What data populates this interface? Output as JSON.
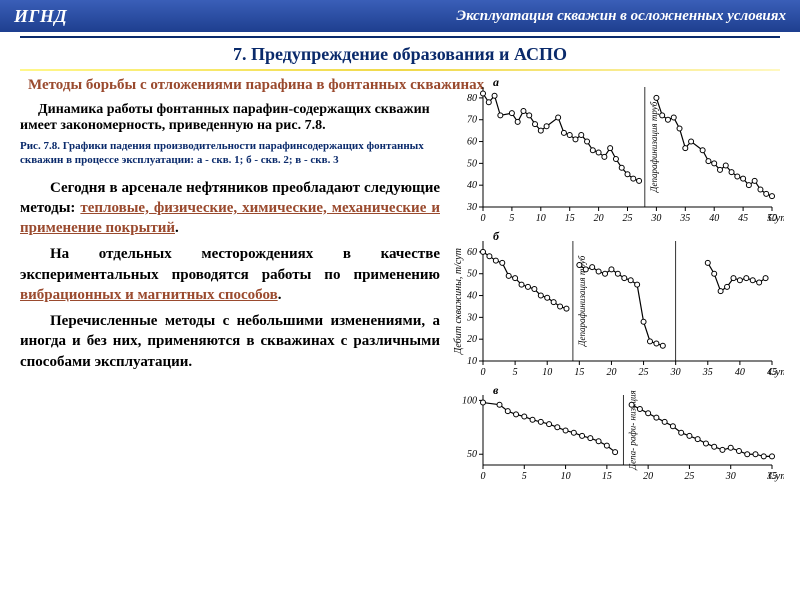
{
  "header": {
    "left": "ИГНД",
    "right": "Эксплуатация скважин в осложненных условиях"
  },
  "section_title": "7. Предупреждение образования и АСПО",
  "subtitle": "Методы борьбы с отложениями парафина в фонтанных скважинах",
  "para1": "Динамика работы фонтанных парафин-содержащих скважин имеет закономерность, приведенную на рис. 7.8.",
  "figcap": "Рис. 7.8. Графики падения производительности парафинсодержащих фонтанных скважин в процессе эксплуатации: а - скв. 1; б - скв. 2; в - скв. 3",
  "p2a": "Сегодня в арсенале нефтяников преобладают следующие методы: ",
  "p2b": "тепловые, физические, химические,  механические  и применение покрытий",
  "p2c": ".",
  "p3a": "На отдельных месторождениях в качестве экспериментальных проводятся работы по применению ",
  "p3b": "вибрационных и магнитных способов",
  "p3c": ".",
  "p4": "Перечисленные методы с небольшими изменениями, а иногда и без них, применяются в скважинах с различными способами эксплуатации.",
  "chart_common": {
    "axis_color": "#000000",
    "bg": "#ffffff",
    "marker_fill": "#ffffff",
    "marker_stroke": "#000000",
    "line_stroke": "#000000",
    "line_width": 1.2,
    "marker_radius": 2.5,
    "tick_font": 10,
    "x_label": "Сутки",
    "side_label_a": "Депарафинизация труб",
    "side_label_b": "Депарафинизация труб",
    "side_label_c": "Депа-\nрафи-\nнизация",
    "y_axis_label": "Дебит скважины, т/сут"
  },
  "chartA": {
    "panel_label": "а",
    "xlim": [
      0,
      50
    ],
    "ylim": [
      30,
      85
    ],
    "xticks": [
      0,
      5,
      10,
      15,
      20,
      25,
      30,
      35,
      40,
      45,
      50
    ],
    "yticks": [
      30,
      40,
      50,
      60,
      70,
      80
    ],
    "series1": [
      [
        0,
        82
      ],
      [
        1,
        78
      ],
      [
        2,
        81
      ],
      [
        3,
        72
      ],
      [
        5,
        73
      ],
      [
        6,
        69
      ],
      [
        7,
        74
      ],
      [
        8,
        72
      ],
      [
        9,
        68
      ],
      [
        10,
        65
      ],
      [
        11,
        67
      ],
      [
        13,
        71
      ],
      [
        14,
        64
      ],
      [
        15,
        63
      ],
      [
        16,
        61
      ],
      [
        17,
        63
      ],
      [
        18,
        60
      ],
      [
        19,
        56
      ],
      [
        20,
        55
      ],
      [
        21,
        53
      ],
      [
        22,
        57
      ],
      [
        23,
        52
      ],
      [
        24,
        48
      ],
      [
        25,
        45
      ],
      [
        26,
        43
      ],
      [
        27,
        42
      ]
    ],
    "series2": [
      [
        30,
        80
      ],
      [
        31,
        72
      ],
      [
        32,
        70
      ],
      [
        33,
        71
      ],
      [
        34,
        66
      ],
      [
        35,
        57
      ],
      [
        36,
        60
      ],
      [
        38,
        56
      ],
      [
        39,
        51
      ],
      [
        40,
        50
      ],
      [
        41,
        47
      ],
      [
        42,
        49
      ],
      [
        43,
        46
      ],
      [
        44,
        44
      ],
      [
        45,
        43
      ],
      [
        46,
        40
      ],
      [
        47,
        42
      ],
      [
        48,
        38
      ],
      [
        49,
        36
      ],
      [
        50,
        35
      ]
    ],
    "vline_x": 28
  },
  "chartB": {
    "panel_label": "б",
    "xlim": [
      0,
      45
    ],
    "ylim": [
      10,
      65
    ],
    "xticks": [
      0,
      5,
      10,
      15,
      20,
      25,
      30,
      35,
      40,
      45
    ],
    "yticks": [
      10,
      20,
      30,
      40,
      50,
      60
    ],
    "series1": [
      [
        0,
        60
      ],
      [
        1,
        58
      ],
      [
        2,
        56
      ],
      [
        3,
        55
      ],
      [
        4,
        49
      ],
      [
        5,
        48
      ],
      [
        6,
        45
      ],
      [
        7,
        44
      ],
      [
        8,
        43
      ],
      [
        9,
        40
      ],
      [
        10,
        39
      ],
      [
        11,
        37
      ],
      [
        12,
        35
      ],
      [
        13,
        34
      ]
    ],
    "series2": [
      [
        15,
        54
      ],
      [
        16,
        52
      ],
      [
        17,
        53
      ],
      [
        18,
        51
      ],
      [
        19,
        50
      ],
      [
        20,
        52
      ],
      [
        21,
        50
      ],
      [
        22,
        48
      ],
      [
        23,
        47
      ],
      [
        24,
        45
      ],
      [
        25,
        28
      ],
      [
        26,
        19
      ],
      [
        27,
        18
      ],
      [
        28,
        17
      ]
    ],
    "series3": [
      [
        35,
        55
      ],
      [
        36,
        50
      ],
      [
        37,
        42
      ],
      [
        38,
        44
      ],
      [
        39,
        48
      ],
      [
        40,
        47
      ],
      [
        41,
        48
      ],
      [
        42,
        47
      ],
      [
        43,
        46
      ],
      [
        44,
        48
      ]
    ],
    "vline_x": [
      14,
      30
    ]
  },
  "chartC": {
    "panel_label": "в",
    "xlim": [
      0,
      35
    ],
    "ylim": [
      40,
      105
    ],
    "xticks": [
      0,
      5,
      10,
      15,
      20,
      25,
      30,
      35
    ],
    "yticks": [
      50,
      100
    ],
    "series1": [
      [
        0,
        98
      ],
      [
        2,
        96
      ],
      [
        3,
        90
      ],
      [
        4,
        87
      ],
      [
        5,
        85
      ],
      [
        6,
        82
      ],
      [
        7,
        80
      ],
      [
        8,
        78
      ],
      [
        9,
        75
      ],
      [
        10,
        72
      ],
      [
        11,
        70
      ],
      [
        12,
        67
      ],
      [
        13,
        65
      ],
      [
        14,
        62
      ],
      [
        15,
        58
      ],
      [
        16,
        52
      ]
    ],
    "series2": [
      [
        18,
        96
      ],
      [
        19,
        92
      ],
      [
        20,
        88
      ],
      [
        21,
        84
      ],
      [
        22,
        80
      ],
      [
        23,
        76
      ],
      [
        24,
        70
      ],
      [
        25,
        67
      ],
      [
        26,
        64
      ],
      [
        27,
        60
      ],
      [
        28,
        57
      ],
      [
        29,
        54
      ],
      [
        30,
        56
      ],
      [
        31,
        53
      ],
      [
        32,
        50
      ],
      [
        33,
        50
      ],
      [
        34,
        48
      ],
      [
        35,
        48
      ]
    ],
    "vline_x": 17
  }
}
